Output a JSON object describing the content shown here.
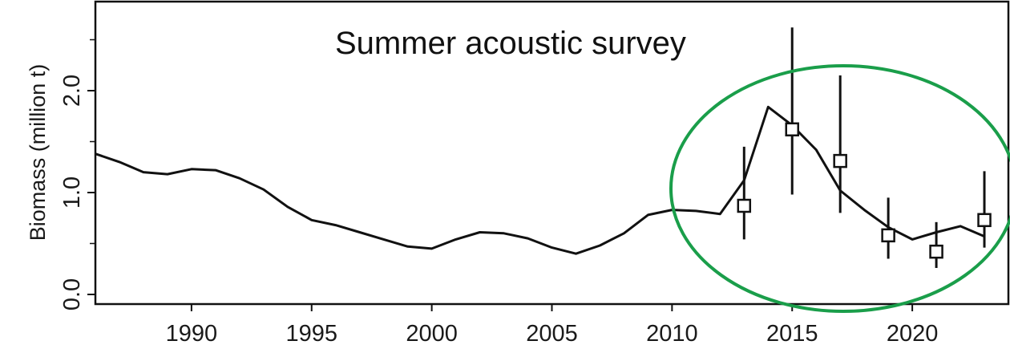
{
  "chart_data": {
    "type": "line",
    "title": "Summer acoustic survey",
    "xlabel": "",
    "ylabel": "Biomass (million t)",
    "xlim": [
      1986,
      2024
    ],
    "ylim": [
      0,
      2.6
    ],
    "x_ticks": [
      1990,
      1995,
      2000,
      2005,
      2010,
      2015,
      2020
    ],
    "y_ticks": [
      {
        "value": 0.0,
        "label": "0.0"
      },
      {
        "value": 1.0,
        "label": "1.0"
      },
      {
        "value": 2.0,
        "label": "2.0"
      }
    ],
    "grid": false,
    "series": [
      {
        "kind": "line",
        "x": [
          1986,
          1987,
          1988,
          1989,
          1990,
          1991,
          1992,
          1993,
          1994,
          1995,
          1996,
          1997,
          1998,
          1999,
          2000,
          2001,
          2002,
          2003,
          2004,
          2005,
          2006,
          2007,
          2008,
          2009,
          2010,
          2011,
          2012,
          2013,
          2014,
          2015,
          2016,
          2017,
          2018,
          2019,
          2020,
          2021,
          2022,
          2023
        ],
        "values": [
          1.38,
          1.3,
          1.2,
          1.18,
          1.23,
          1.22,
          1.14,
          1.03,
          0.86,
          0.73,
          0.68,
          0.61,
          0.54,
          0.47,
          0.45,
          0.54,
          0.61,
          0.6,
          0.55,
          0.46,
          0.4,
          0.48,
          0.6,
          0.78,
          0.83,
          0.82,
          0.79,
          1.12,
          1.84,
          1.66,
          1.42,
          1.02,
          0.83,
          0.66,
          0.54,
          0.61,
          0.67,
          0.57
        ]
      },
      {
        "kind": "points_with_error_bars",
        "marker": "open-square",
        "points": [
          {
            "x": 2013,
            "y": 0.87,
            "lo": 0.54,
            "hi": 1.45
          },
          {
            "x": 2015,
            "y": 1.62,
            "lo": 0.98,
            "hi": 2.62
          },
          {
            "x": 2017,
            "y": 1.31,
            "lo": 0.8,
            "hi": 2.15
          },
          {
            "x": 2019,
            "y": 0.58,
            "lo": 0.35,
            "hi": 0.95
          },
          {
            "x": 2021,
            "y": 0.42,
            "lo": 0.26,
            "hi": 0.71
          },
          {
            "x": 2023,
            "y": 0.73,
            "lo": 0.46,
            "hi": 1.21
          }
        ]
      }
    ],
    "annotation": {
      "shape": "ellipse",
      "color": "#1a9e4a",
      "encloses_years": [
        2012,
        2024
      ]
    },
    "colors": {
      "line": "#111111",
      "axis": "#111111",
      "marker_fill": "#ffffff",
      "highlight": "#1a9e4a"
    }
  }
}
